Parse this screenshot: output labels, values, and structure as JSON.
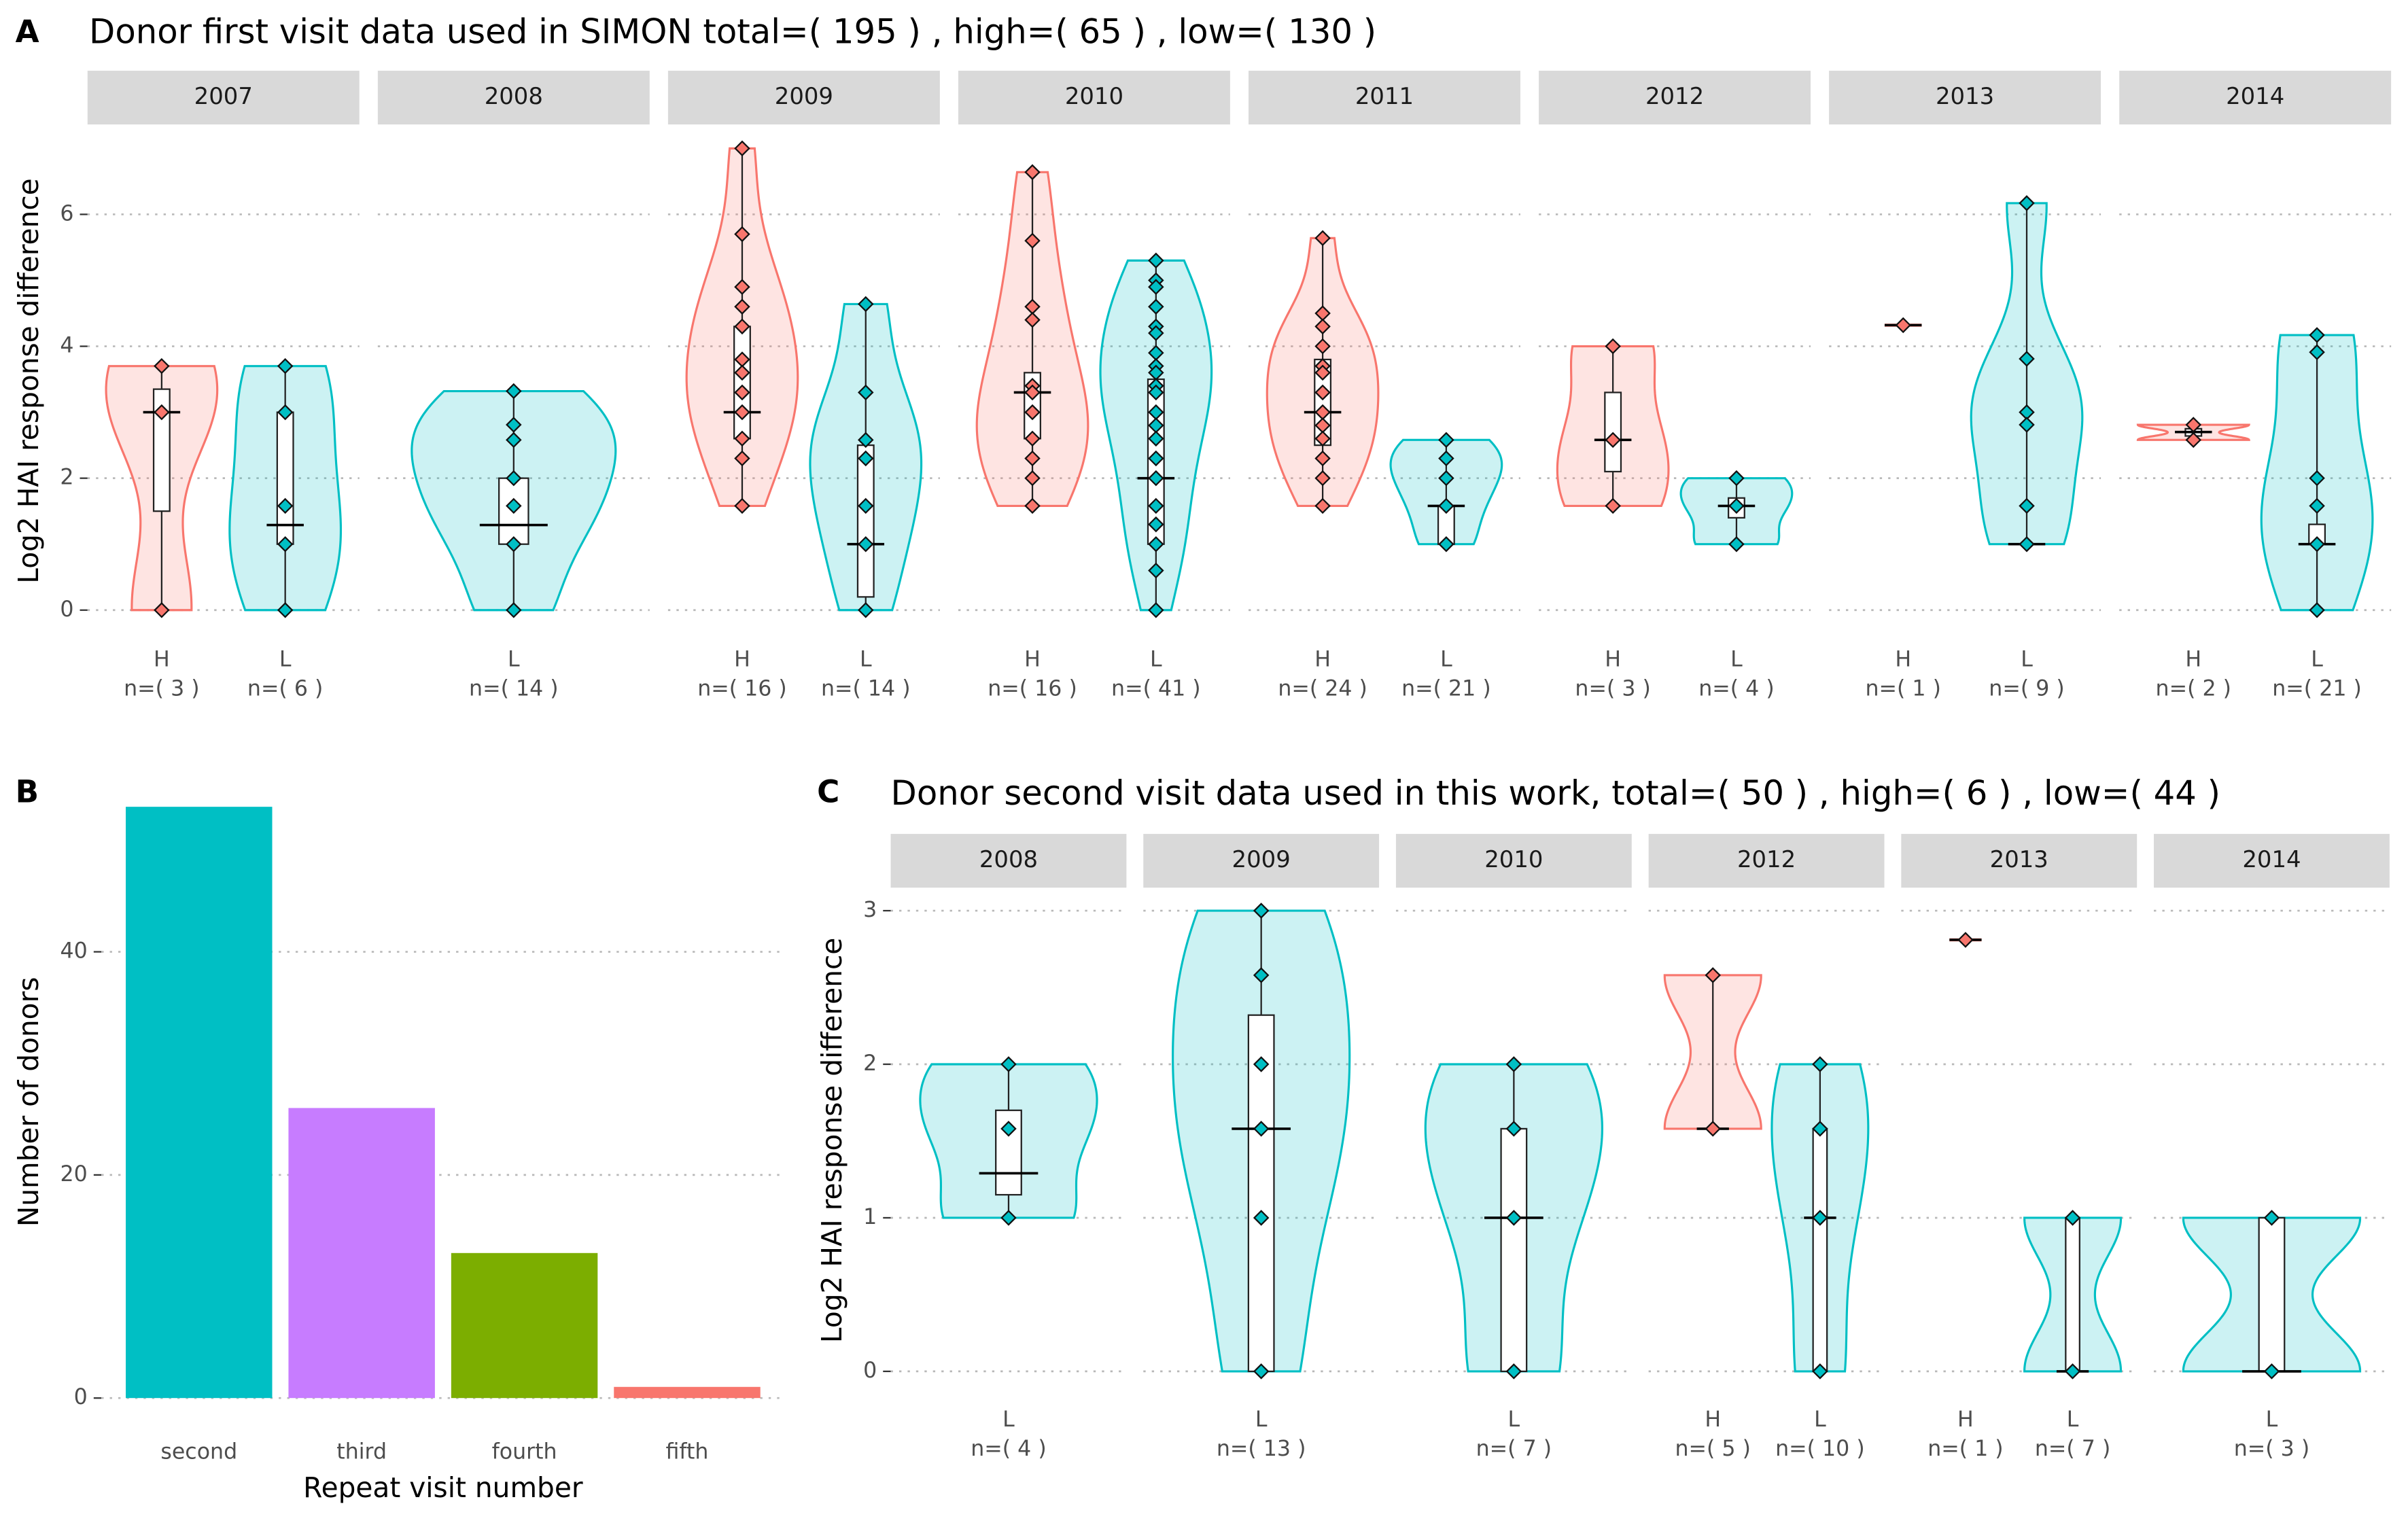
{
  "chart_data": [
    {
      "type": "violin",
      "panel_label": "A",
      "title": "Donor first visit data used in SIMON total=( 195 ) , high=( 65 ) , low=( 130 )",
      "ylabel": "Log2 HAI response difference",
      "ylim": [
        -0.25,
        7.2
      ],
      "yticks": [
        0,
        2,
        4,
        6
      ],
      "grid": true,
      "group_colors": {
        "H": "#F8766D",
        "L": "#00BFC4"
      },
      "facets": [
        {
          "name": "2007",
          "groups": [
            {
              "label": "H",
              "n_label": "n=( 3 )",
              "values": [
                3.7,
                3.0,
                0
              ],
              "median": 3.0,
              "q1": 1.5,
              "q3": 3.35
            },
            {
              "label": "L",
              "n_label": "n=( 6 )",
              "values": [
                3.7,
                3.0,
                1.58,
                1.0,
                0
              ],
              "median": 1.29,
              "q1": 1.0,
              "q3": 3.0
            }
          ]
        },
        {
          "name": "2008",
          "groups": [
            {
              "label": "L",
              "n_label": "n=( 14 )",
              "values": [
                3.32,
                2.81,
                2.58,
                2.0,
                1.58,
                1.0,
                0
              ],
              "median": 1.29,
              "q1": 1.0,
              "q3": 2.0
            }
          ]
        },
        {
          "name": "2009",
          "groups": [
            {
              "label": "H",
              "n_label": "n=( 16 )",
              "values": [
                7.0,
                5.7,
                4.9,
                4.6,
                4.3,
                3.8,
                3.6,
                3.3,
                3.0,
                2.6,
                2.3,
                1.58
              ],
              "median": 3.0,
              "q1": 2.6,
              "q3": 4.3
            },
            {
              "label": "L",
              "n_label": "n=( 14 )",
              "values": [
                4.64,
                3.3,
                2.58,
                2.3,
                1.58,
                1.0,
                0
              ],
              "median": 1.0,
              "q1": 0.2,
              "q3": 2.5
            }
          ]
        },
        {
          "name": "2010",
          "groups": [
            {
              "label": "H",
              "n_label": "n=( 16 )",
              "values": [
                6.64,
                5.6,
                4.6,
                4.4,
                3.4,
                3.3,
                3.0,
                2.6,
                2.3,
                2.0,
                1.58
              ],
              "median": 3.3,
              "q1": 2.6,
              "q3": 3.6
            },
            {
              "label": "L",
              "n_label": "n=( 41 )",
              "values": [
                5.3,
                5.0,
                4.9,
                4.6,
                4.3,
                4.2,
                3.9,
                3.7,
                3.6,
                3.4,
                3.3,
                3.0,
                2.8,
                2.6,
                2.3,
                2.0,
                1.58,
                1.3,
                1.0,
                0.6,
                0
              ],
              "median": 2.0,
              "q1": 1.0,
              "q3": 3.5
            }
          ]
        },
        {
          "name": "2011",
          "groups": [
            {
              "label": "H",
              "n_label": "n=( 24 )",
              "values": [
                5.64,
                4.5,
                4.3,
                4.0,
                3.7,
                3.6,
                3.3,
                3.0,
                2.8,
                2.6,
                2.3,
                2.0,
                1.58
              ],
              "median": 3.0,
              "q1": 2.5,
              "q3": 3.8
            },
            {
              "label": "L",
              "n_label": "n=( 21 )",
              "values": [
                2.58,
                2.3,
                2.0,
                1.58,
                1.0
              ],
              "median": 1.58,
              "q1": 1.0,
              "q3": 1.58
            }
          ]
        },
        {
          "name": "2012",
          "groups": [
            {
              "label": "H",
              "n_label": "n=( 3 )",
              "values": [
                4.0,
                2.58,
                1.58
              ],
              "median": 2.58,
              "q1": 2.1,
              "q3": 3.3
            },
            {
              "label": "L",
              "n_label": "n=( 4 )",
              "values": [
                2.0,
                1.58,
                1.0
              ],
              "median": 1.58,
              "q1": 1.4,
              "q3": 1.7
            }
          ]
        },
        {
          "name": "2013",
          "groups": [
            {
              "label": "H",
              "n_label": "n=( 1 )",
              "values": [
                4.32
              ],
              "median": 4.32,
              "q1": 4.32,
              "q3": 4.32
            },
            {
              "label": "L",
              "n_label": "n=( 9 )",
              "values": [
                6.17,
                3.81,
                3.0,
                2.81,
                1.58,
                1.0
              ],
              "median": 1.0,
              "q1": 1.0,
              "q3": 1.0
            }
          ]
        },
        {
          "name": "2014",
          "groups": [
            {
              "label": "H",
              "n_label": "n=( 2 )",
              "values": [
                2.81,
                2.58
              ],
              "median": 2.7,
              "q1": 2.64,
              "q3": 2.75
            },
            {
              "label": "L",
              "n_label": "n=( 21 )",
              "values": [
                4.17,
                3.91,
                2.0,
                1.58,
                1.0,
                0
              ],
              "median": 1.0,
              "q1": 1.0,
              "q3": 1.3
            }
          ]
        }
      ]
    },
    {
      "type": "bar",
      "panel_label": "B",
      "xlabel": "Repeat visit number",
      "ylabel": "Number of donors",
      "categories": [
        "second",
        "third",
        "fourth",
        "fifth"
      ],
      "values": [
        53,
        26,
        13,
        1
      ],
      "colors": [
        "#00BFC4",
        "#C77CFF",
        "#7CAE00",
        "#F8766D"
      ],
      "ylim": [
        -2.7,
        55.8
      ],
      "yticks": [
        0,
        20,
        40
      ],
      "grid": true
    },
    {
      "type": "violin",
      "panel_label": "C",
      "title": "Donor second visit data used in this work, total=( 50 ) , high=( 6 ) , low=( 44 )",
      "ylabel": "Log2 HAI response difference",
      "ylim": [
        -0.1,
        3.11
      ],
      "yticks": [
        0,
        1,
        2,
        3
      ],
      "grid": true,
      "group_colors": {
        "H": "#F8766D",
        "L": "#00BFC4"
      },
      "facets": [
        {
          "name": "2008",
          "groups": [
            {
              "label": "L",
              "n_label": "n=( 4 )",
              "values": [
                2.0,
                1.58,
                1.0
              ],
              "median": 1.29,
              "q1": 1.15,
              "q3": 1.7
            }
          ]
        },
        {
          "name": "2009",
          "groups": [
            {
              "label": "L",
              "n_label": "n=( 13 )",
              "values": [
                3.0,
                2.58,
                2.0,
                1.58,
                1.0,
                0
              ],
              "median": 1.58,
              "q1": 0,
              "q3": 2.32
            }
          ]
        },
        {
          "name": "2010",
          "groups": [
            {
              "label": "L",
              "n_label": "n=( 7 )",
              "values": [
                2.0,
                1.58,
                1.0,
                0
              ],
              "median": 1.0,
              "q1": 0,
              "q3": 1.58
            }
          ]
        },
        {
          "name": "2012",
          "groups": [
            {
              "label": "H",
              "n_label": "n=( 5 )",
              "values": [
                2.58,
                1.58
              ],
              "median": 1.58,
              "q1": 1.58,
              "q3": 1.58
            },
            {
              "label": "L",
              "n_label": "n=( 10 )",
              "values": [
                2.0,
                1.58,
                1.0,
                0
              ],
              "median": 1.0,
              "q1": 0,
              "q3": 1.58
            }
          ]
        },
        {
          "name": "2013",
          "groups": [
            {
              "label": "H",
              "n_label": "n=( 1 )",
              "values": [
                2.81
              ],
              "median": 2.81,
              "q1": 2.81,
              "q3": 2.81
            },
            {
              "label": "L",
              "n_label": "n=( 7 )",
              "values": [
                1.0,
                0
              ],
              "median": 0,
              "q1": 0,
              "q3": 1.0
            }
          ]
        },
        {
          "name": "2014",
          "groups": [
            {
              "label": "L",
              "n_label": "n=( 3 )",
              "values": [
                1.0,
                0
              ],
              "median": 0,
              "q1": 0,
              "q3": 1.0
            }
          ]
        }
      ]
    }
  ]
}
